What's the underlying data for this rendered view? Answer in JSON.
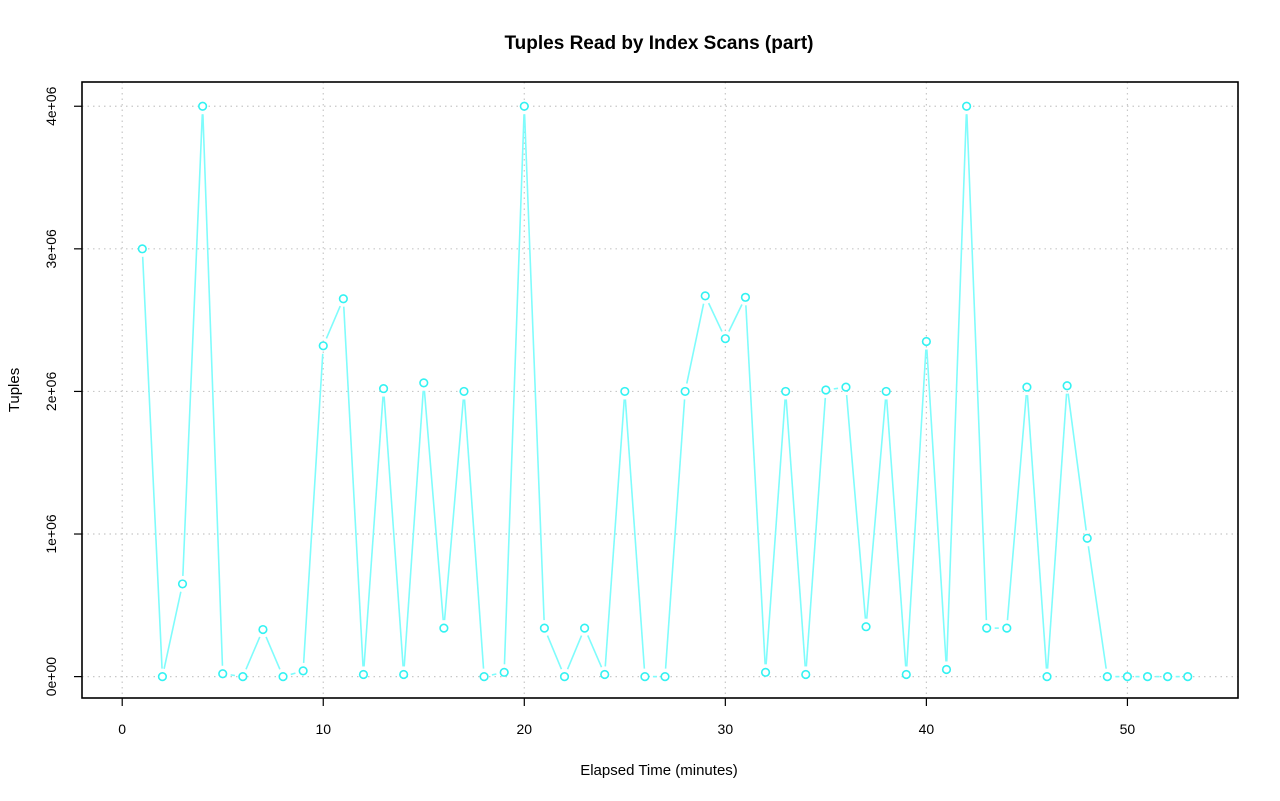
{
  "chart_data": {
    "type": "line",
    "title": "Tuples Read by Index Scans (part)",
    "xlabel": "Elapsed Time (minutes)",
    "ylabel": "Tuples",
    "xlim": [
      -2,
      55.5
    ],
    "ylim": [
      -150000,
      4170000
    ],
    "xticks": [
      0,
      10,
      20,
      30,
      40,
      50
    ],
    "xtick_labels": [
      "0",
      "10",
      "20",
      "30",
      "40",
      "50"
    ],
    "yticks": [
      0,
      1000000,
      2000000,
      3000000,
      4000000
    ],
    "ytick_labels": [
      "0e+00",
      "1e+06",
      "2e+06",
      "3e+06",
      "4e+06"
    ],
    "grid": true,
    "color": "#7ffcfc",
    "marker": "open-circle",
    "series": [
      {
        "x": [
          1,
          2,
          3,
          4,
          5,
          6,
          7,
          8,
          9,
          10,
          11,
          12,
          13,
          14,
          15,
          16,
          17,
          18,
          19,
          20,
          21,
          22,
          23,
          24,
          25,
          26,
          27,
          28,
          29,
          30,
          31,
          32,
          33,
          34,
          35,
          36,
          37,
          38,
          39,
          40,
          41,
          42,
          43,
          44,
          45,
          46,
          47,
          48,
          49,
          50,
          51,
          52,
          53
        ],
        "values": [
          3000000,
          0,
          650000,
          4000000,
          20000,
          0,
          330000,
          0,
          40000,
          2320000,
          2650000,
          15000,
          2020000,
          15000,
          2060000,
          340000,
          2000000,
          0,
          30000,
          4000000,
          340000,
          0,
          340000,
          15000,
          2000000,
          0,
          0,
          2000000,
          2670000,
          2370000,
          2660000,
          30000,
          2000000,
          15000,
          2010000,
          2030000,
          350000,
          2000000,
          15000,
          2350000,
          50000,
          4000000,
          340000,
          340000,
          2030000,
          0,
          2040000,
          970000,
          0,
          0,
          0,
          0,
          0
        ]
      }
    ]
  }
}
